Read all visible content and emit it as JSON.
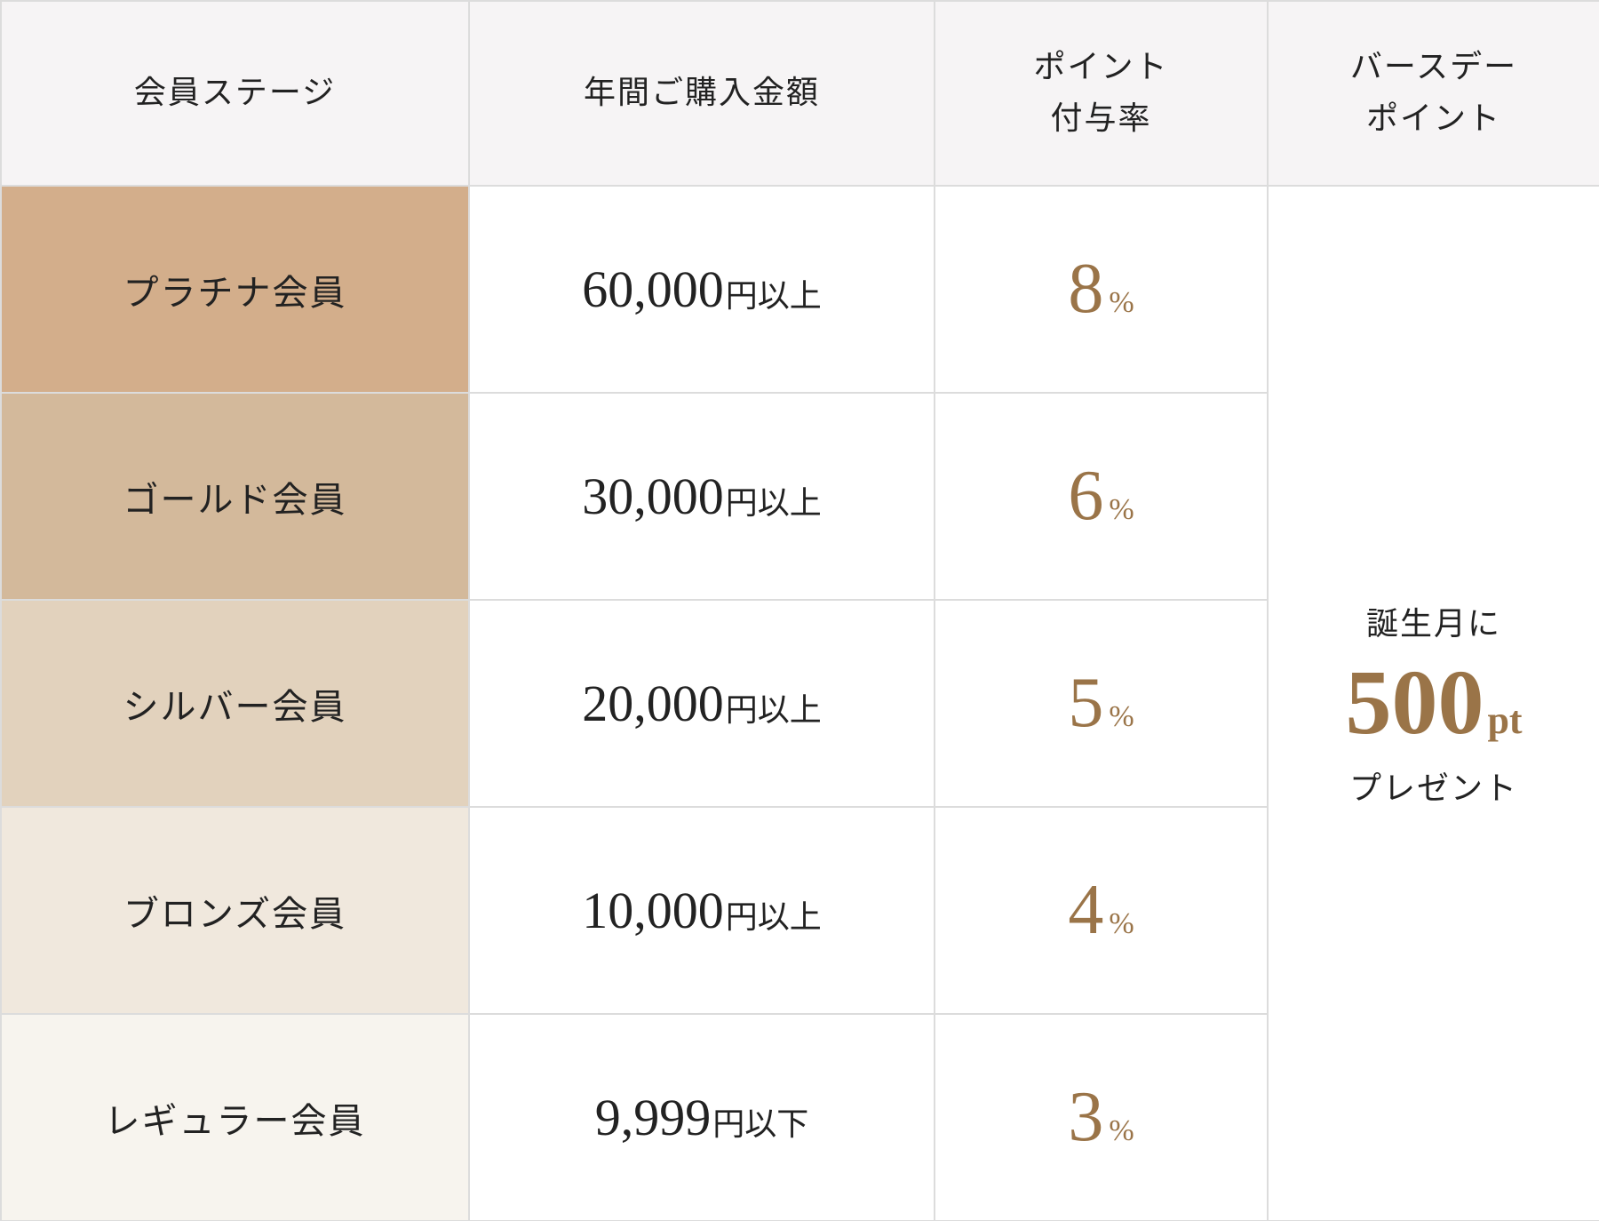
{
  "header": [
    "会員ステージ",
    "年間ご購入金額",
    "ポイント\n付与率",
    "バースデー\nポイント"
  ],
  "rows": [
    {
      "stage": "プラチナ会員",
      "amount": "60,000",
      "amount_unit": "円以上",
      "rate": "8",
      "rate_unit": "%"
    },
    {
      "stage": "ゴールド会員",
      "amount": "30,000",
      "amount_unit": "円以上",
      "rate": "6",
      "rate_unit": "%"
    },
    {
      "stage": "シルバー会員",
      "amount": "20,000",
      "amount_unit": "円以上",
      "rate": "5",
      "rate_unit": "%"
    },
    {
      "stage": "ブロンズ会員",
      "amount": "10,000",
      "amount_unit": "円以上",
      "rate": "4",
      "rate_unit": "%"
    },
    {
      "stage": "レギュラー会員",
      "amount": "9,999",
      "amount_unit": "円以下",
      "rate": "3",
      "rate_unit": "%"
    }
  ],
  "birthday": {
    "lead": "誕生月に",
    "amount": "500",
    "unit": "pt",
    "tail": "プレゼント"
  }
}
